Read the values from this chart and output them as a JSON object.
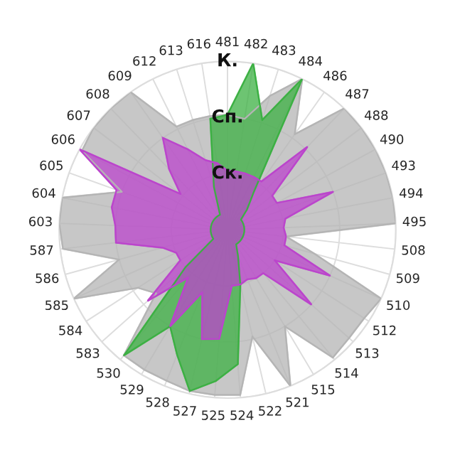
{
  "chart_data": {
    "type": "radar",
    "categories": [
      "481",
      "482",
      "483",
      "484",
      "486",
      "487",
      "488",
      "490",
      "493",
      "494",
      "495",
      "508",
      "509",
      "510",
      "512",
      "513",
      "514",
      "515",
      "521",
      "522",
      "524",
      "525",
      "527",
      "528",
      "529",
      "530",
      "583",
      "584",
      "585",
      "586",
      "587",
      "603",
      "604",
      "605",
      "606",
      "607",
      "608",
      "609",
      "612",
      "613",
      "616"
    ],
    "ylim": [
      0,
      3
    ],
    "yticks": [
      {
        "value": 1,
        "label": "Ск."
      },
      {
        "value": 2,
        "label": "Сп."
      },
      {
        "value": 3,
        "label": "К."
      }
    ],
    "grid": true,
    "series": [
      {
        "color": "#b4b4b4",
        "values": [
          2.05,
          2.0,
          2.5,
          3.0,
          2.08,
          3.0,
          3.0,
          3.0,
          3.0,
          3.0,
          3.0,
          1.05,
          1.6,
          3.0,
          2.9,
          2.9,
          2.95,
          2.0,
          3.0,
          1.95,
          2.95,
          2.95,
          2.95,
          2.9,
          2.9,
          2.9,
          1.7,
          1.9,
          3.0,
          2.0,
          2.95,
          3.0,
          3.0,
          2.0,
          2.95,
          3.0,
          3.0,
          3.0,
          2.05,
          2.05,
          2.05
        ]
      },
      {
        "color": "#3cb043",
        "values": [
          2.05,
          3.0,
          2.05,
          3.0,
          0.8,
          0.5,
          0.3,
          0.3,
          0.3,
          0.3,
          0.3,
          0.3,
          0.3,
          0.3,
          0.3,
          0.3,
          0.3,
          0.3,
          0.5,
          1.0,
          2.4,
          2.7,
          2.95,
          2.4,
          2.0,
          2.9,
          1.0,
          0.3,
          0.3,
          0.3,
          0.3,
          0.3,
          0.3,
          0.3,
          0.3,
          0.3,
          0.3,
          0.3,
          0.3,
          0.8,
          2.0
        ]
      },
      {
        "color": "#bb44cc",
        "values": [
          1.05,
          1.05,
          1.05,
          1.05,
          1.05,
          2.05,
          1.0,
          1.0,
          2.0,
          1.05,
          1.0,
          1.05,
          1.05,
          2.0,
          1.0,
          2.0,
          1.0,
          1.0,
          0.95,
          1.0,
          1.0,
          1.95,
          2.0,
          1.2,
          2.0,
          1.1,
          1.9,
          1.0,
          1.0,
          1.2,
          2.0,
          2.0,
          2.1,
          2.1,
          3.0,
          1.05,
          1.5,
          2.0,
          1.6,
          1.3,
          1.2
        ]
      }
    ]
  }
}
